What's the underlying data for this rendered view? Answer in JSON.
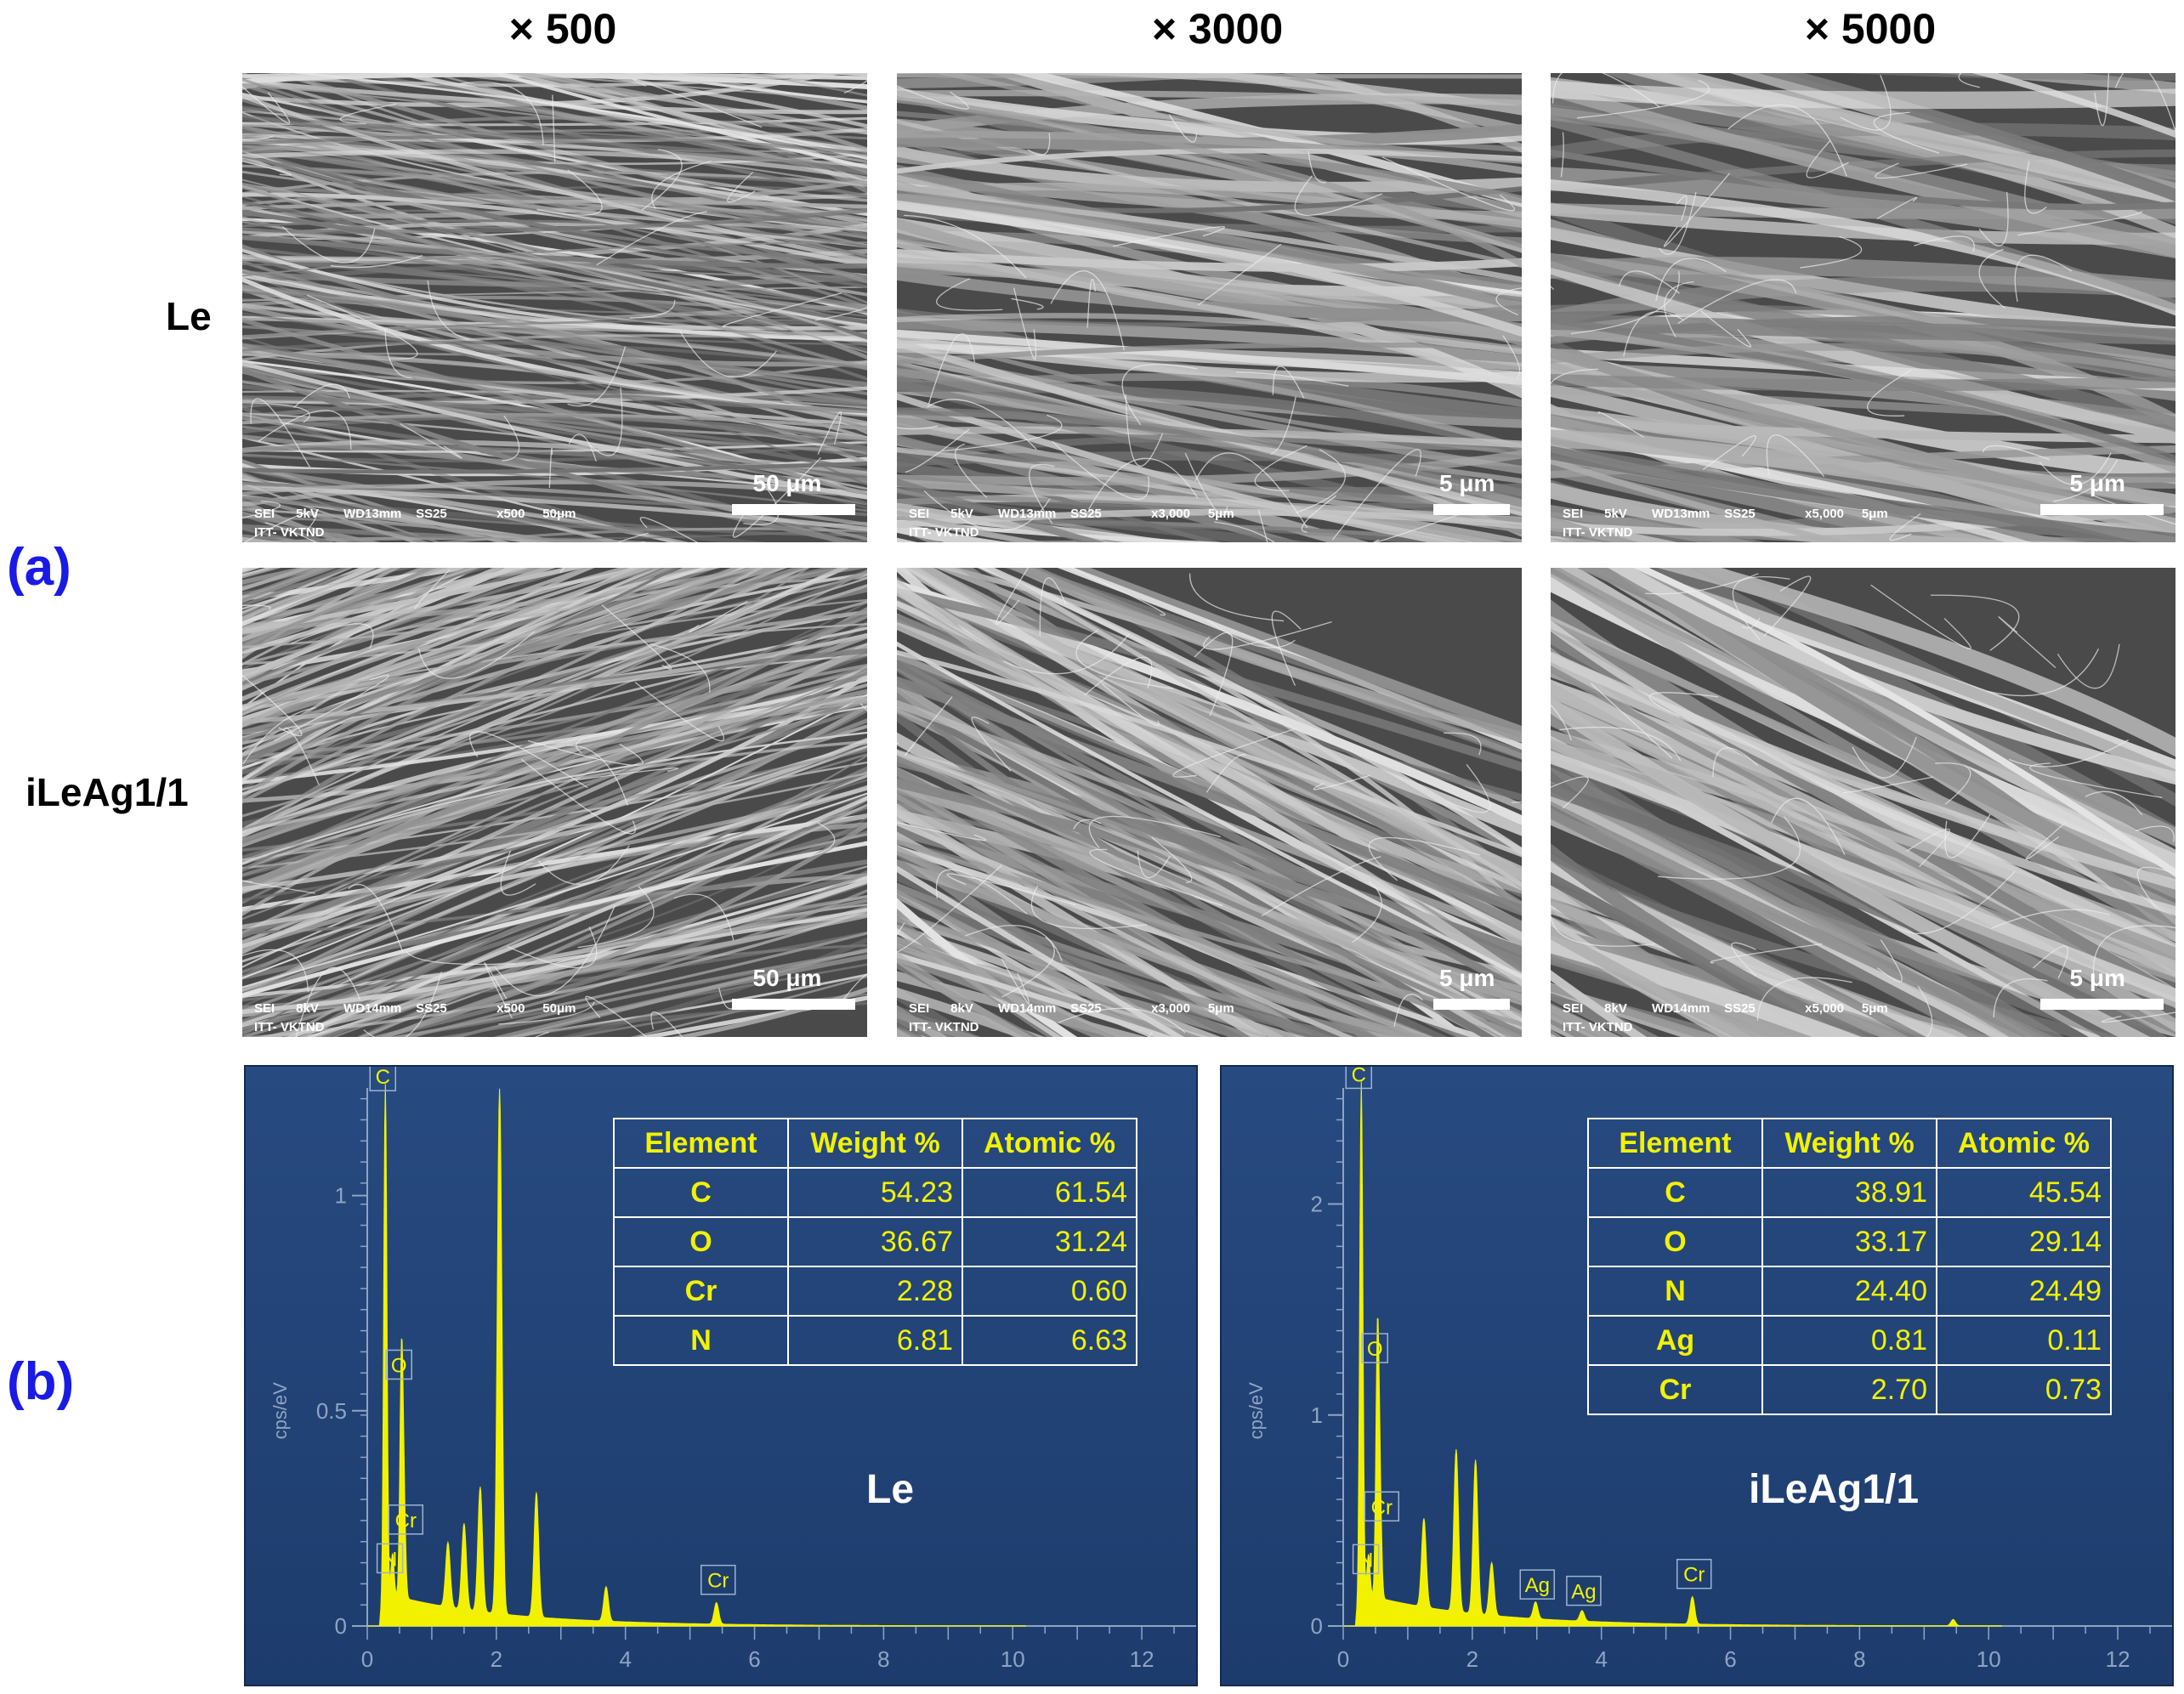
{
  "column_headers": [
    "× 500",
    "× 3000",
    "× 5000"
  ],
  "row_headers": [
    "Le",
    "iLeAg1/1"
  ],
  "panel_labels": {
    "a": "(a)",
    "b": "(b)"
  },
  "sem_images": [
    {
      "scale_label": "50 μm",
      "footer_line1": "SEI      5kV       WD13mm    SS25              x500     50μm",
      "footer_line2": "ITT- VKTND"
    },
    {
      "scale_label": "5 μm",
      "footer_line1": "SEI      5kV       WD13mm    SS25              x3,000     5μm",
      "footer_line2": "ITT- VKTND"
    },
    {
      "scale_label": "5 μm",
      "footer_line1": "SEI      5kV       WD13mm    SS25              x5,000     5μm",
      "footer_line2": "ITT- VKTND"
    },
    {
      "scale_label": "50 μm",
      "footer_line1": "SEI      8kV       WD14mm    SS25              x500     50μm",
      "footer_line2": "ITT- VKTND"
    },
    {
      "scale_label": "5 μm",
      "footer_line1": "SEI      8kV       WD14mm    SS25              x3,000     5μm",
      "footer_line2": "ITT- VKTND"
    },
    {
      "scale_label": "5 μm",
      "footer_line1": "SEI      8kV       WD14mm    SS25              x5,000     5μm",
      "footer_line2": "ITT- VKTND"
    }
  ],
  "colors": {
    "label_blue": "#1a1ae6",
    "eds_bg": "#23457a",
    "spectrum": "#f2f200"
  },
  "chart_data": [
    {
      "type": "area",
      "sample": "Le",
      "ylabel": "cps/eV",
      "xlim": [
        0,
        13
      ],
      "ylim": [
        0,
        1.25
      ],
      "xticks": [
        "0",
        "2",
        "4",
        "6",
        "8",
        "10",
        "12"
      ],
      "yticks": [
        "0",
        "0.5",
        "1"
      ],
      "peaks": [
        {
          "x": 0.28,
          "y": 1.22,
          "label": "C"
        },
        {
          "x": 0.39,
          "y": 0.1,
          "label": "N"
        },
        {
          "x": 0.53,
          "y": 0.55,
          "label": "O"
        },
        {
          "x": 0.57,
          "y": 0.19,
          "label": "Cr"
        },
        {
          "x": 1.25,
          "y": 0.15,
          "label": ""
        },
        {
          "x": 1.5,
          "y": 0.2,
          "label": ""
        },
        {
          "x": 1.75,
          "y": 0.29,
          "label": ""
        },
        {
          "x": 2.05,
          "y": 1.22,
          "label": ""
        },
        {
          "x": 2.62,
          "y": 0.29,
          "label": ""
        },
        {
          "x": 3.7,
          "y": 0.08,
          "label": ""
        },
        {
          "x": 5.41,
          "y": 0.05,
          "label": "Cr"
        }
      ],
      "table": {
        "headers": [
          "Element",
          "Weight %",
          "Atomic %"
        ],
        "rows": [
          [
            "C",
            "54.23",
            "61.54"
          ],
          [
            "O",
            "36.67",
            "31.24"
          ],
          [
            "Cr",
            "2.28",
            "0.60"
          ],
          [
            "N",
            "6.81",
            "6.63"
          ]
        ]
      }
    },
    {
      "type": "area",
      "sample": "iLeAg1/1",
      "ylabel": "cps/eV",
      "xlim": [
        0,
        13
      ],
      "ylim": [
        0,
        2.55
      ],
      "xticks": [
        "0",
        "2",
        "4",
        "6",
        "8",
        "10",
        "12"
      ],
      "yticks": [
        "0",
        "1",
        "2"
      ],
      "peaks": [
        {
          "x": 0.28,
          "y": 2.5,
          "label": "C"
        },
        {
          "x": 0.39,
          "y": 0.2,
          "label": "N"
        },
        {
          "x": 0.53,
          "y": 1.2,
          "label": "O"
        },
        {
          "x": 0.57,
          "y": 0.45,
          "label": "Cr"
        },
        {
          "x": 1.25,
          "y": 0.42,
          "label": ""
        },
        {
          "x": 1.75,
          "y": 0.77,
          "label": ""
        },
        {
          "x": 2.05,
          "y": 0.73,
          "label": ""
        },
        {
          "x": 2.3,
          "y": 0.25,
          "label": ""
        },
        {
          "x": 2.98,
          "y": 0.08,
          "label": "Ag"
        },
        {
          "x": 3.7,
          "y": 0.05,
          "label": "Ag"
        },
        {
          "x": 5.41,
          "y": 0.13,
          "label": "Cr"
        },
        {
          "x": 9.45,
          "y": 0.03,
          "label": ""
        }
      ],
      "table": {
        "headers": [
          "Element",
          "Weight %",
          "Atomic %"
        ],
        "rows": [
          [
            "C",
            "38.91",
            "45.54"
          ],
          [
            "O",
            "33.17",
            "29.14"
          ],
          [
            "N",
            "24.40",
            "24.49"
          ],
          [
            "Ag",
            "0.81",
            "0.11"
          ],
          [
            "Cr",
            "2.70",
            "0.73"
          ]
        ]
      }
    }
  ]
}
